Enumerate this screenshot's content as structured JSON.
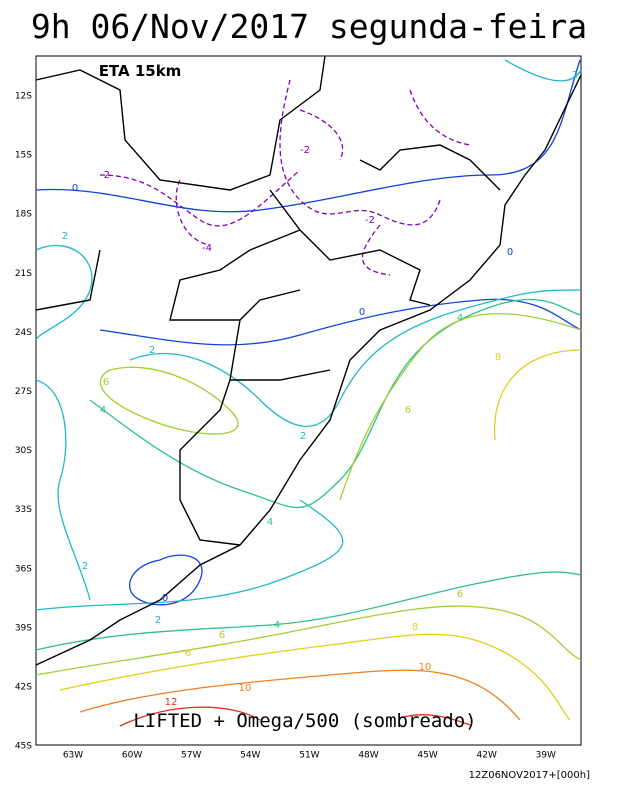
{
  "header": {
    "title": "9h 06/Nov/2017 segunda-feira"
  },
  "map": {
    "model_label": "ETA 15km",
    "legend_label": "LIFTED + Omega/500 (sombreado)",
    "lat_labels": [
      "12S",
      "15S",
      "18S",
      "21S",
      "24S",
      "27S",
      "30S",
      "33S",
      "36S",
      "39S",
      "42S",
      "45S"
    ],
    "lon_labels": [
      "63W",
      "60W",
      "57W",
      "54W",
      "51W",
      "48W",
      "45W",
      "42W",
      "39W"
    ],
    "contour_labels": [
      "-2",
      "-2",
      "-2",
      "-4",
      "0",
      "0",
      "0",
      "2",
      "2",
      "2",
      "2",
      "4",
      "4",
      "4",
      "6",
      "6",
      "8",
      "6",
      "4",
      "6",
      "8",
      "6",
      "10",
      "10",
      "12",
      "2",
      "0",
      "2"
    ]
  },
  "footer": {
    "run": "12Z06NOV2017+[000h]"
  }
}
